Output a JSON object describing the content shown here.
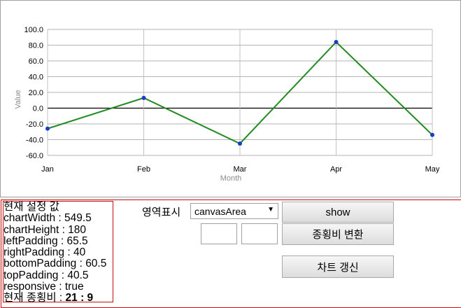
{
  "chart_data": {
    "type": "line",
    "categories": [
      "Jan",
      "Feb",
      "Mar",
      "Apr",
      "May"
    ],
    "series": [
      {
        "values": [
          -26,
          13,
          -45,
          84,
          -34
        ],
        "color": "#228b22",
        "point_color": "#1a3cc9"
      }
    ],
    "xlabel": "Month",
    "ylabel": "Value",
    "ylim": [
      -60,
      100
    ],
    "yticks": [
      "100.0",
      "80.0",
      "60.0",
      "40.0",
      "20.0",
      "0.0",
      "-20.0",
      "-40.0",
      "-60.0"
    ],
    "grid": true
  },
  "info": {
    "title": "현재 설정 값",
    "chartWidth": "chartWidth : 549.5",
    "chartHeight": "chartHeight : 180",
    "leftPadding": "leftPadding : 65.5",
    "rightPadding": "rightPadding : 40",
    "bottomPadding": "bottomPadding : 60.5",
    "topPadding": "topPadding : 40.5",
    "responsive": "responsive : true",
    "ratio_label": "현재 종횡비 : ",
    "ratio_value": "21 : 9"
  },
  "controls": {
    "area_label": "영역표시",
    "area_select_value": "canvasArea",
    "ratio_width_value": "",
    "ratio_height_value": "",
    "show_button": "show",
    "ratio_button": "종횡비 변환",
    "update_button": "차트 갱신"
  }
}
